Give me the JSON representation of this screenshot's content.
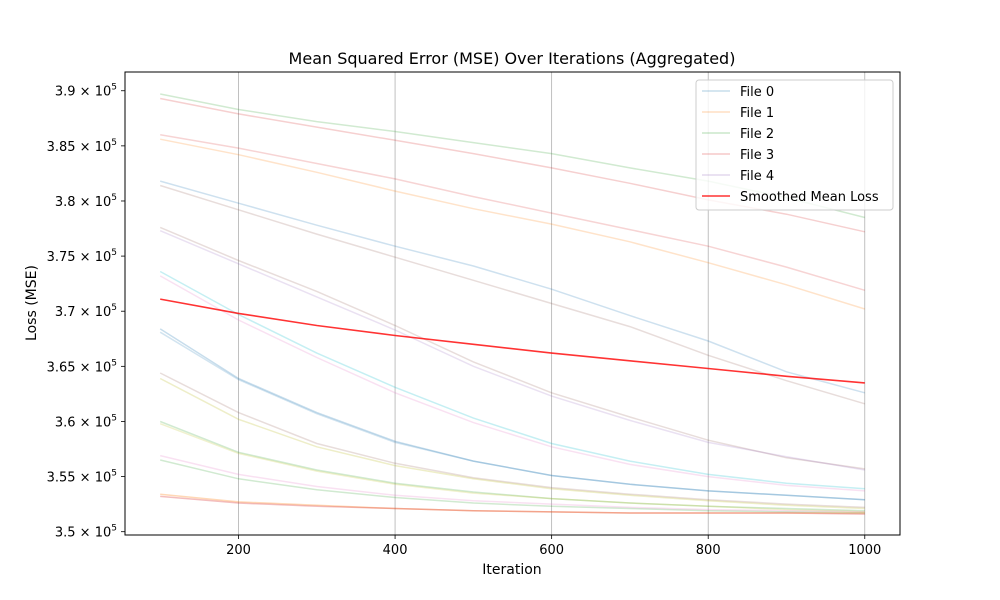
{
  "chart_data": {
    "type": "line",
    "title": "Mean Squared Error (MSE) Over Iterations (Aggregated)",
    "xlabel": "Iteration",
    "ylabel": "Loss (MSE)",
    "x": [
      100,
      200,
      300,
      400,
      500,
      600,
      700,
      800,
      900,
      1000
    ],
    "xlim": [
      55,
      1045
    ],
    "ylim": [
      349700,
      391700
    ],
    "xticks": [
      200,
      400,
      600,
      800,
      1000
    ],
    "yticks": [
      {
        "value": 350000,
        "mantissa": "3.5",
        "exponent": "5"
      },
      {
        "value": 355000,
        "mantissa": "3.55",
        "exponent": "5"
      },
      {
        "value": 360000,
        "mantissa": "3.6",
        "exponent": "5"
      },
      {
        "value": 365000,
        "mantissa": "3.65",
        "exponent": "5"
      },
      {
        "value": 370000,
        "mantissa": "3.7",
        "exponent": "5"
      },
      {
        "value": 375000,
        "mantissa": "3.75",
        "exponent": "5"
      },
      {
        "value": 380000,
        "mantissa": "3.8",
        "exponent": "5"
      },
      {
        "value": 385000,
        "mantissa": "3.85",
        "exponent": "5"
      },
      {
        "value": 390000,
        "mantissa": "3.9",
        "exponent": "5"
      }
    ],
    "tick_base": "10",
    "grid": "vertical",
    "legend_position": "top-right",
    "legend": [
      {
        "name": "File 0",
        "color": "#1f77b4",
        "opacity": 0.25
      },
      {
        "name": "File 1",
        "color": "#ff7f0e",
        "opacity": 0.25
      },
      {
        "name": "File 2",
        "color": "#2ca02c",
        "opacity": 0.25
      },
      {
        "name": "File 3",
        "color": "#d62728",
        "opacity": 0.25
      },
      {
        "name": "File 4",
        "color": "#9467bd",
        "opacity": 0.25
      },
      {
        "name": "Smoothed Mean Loss",
        "color": "#ff0000",
        "opacity": 0.8
      }
    ],
    "series": [
      {
        "color": "#2ca02c",
        "opacity": 0.22,
        "values": [
          389700,
          388300,
          387200,
          386300,
          385300,
          384300,
          383000,
          381800,
          380300,
          378500
        ]
      },
      {
        "color": "#d62728",
        "opacity": 0.22,
        "values": [
          389300,
          387900,
          386700,
          385500,
          384300,
          383000,
          381600,
          380100,
          378800,
          377200
        ]
      },
      {
        "color": "#d62728",
        "opacity": 0.2,
        "values": [
          386000,
          384800,
          383400,
          382000,
          380400,
          378900,
          377400,
          375900,
          374000,
          371900
        ]
      },
      {
        "color": "#ff7f0e",
        "opacity": 0.22,
        "values": [
          385600,
          384200,
          382600,
          380900,
          379300,
          377900,
          376300,
          374400,
          372400,
          370200
        ]
      },
      {
        "color": "#1f77b4",
        "opacity": 0.22,
        "values": [
          381800,
          379800,
          377800,
          375900,
          374100,
          372000,
          369600,
          367300,
          364500,
          362600
        ]
      },
      {
        "color": "#8c564b",
        "opacity": 0.2,
        "values": [
          381400,
          379200,
          377000,
          374900,
          372800,
          370700,
          368600,
          366000,
          363700,
          361600
        ]
      },
      {
        "color": "#8c564b",
        "opacity": 0.2,
        "values": [
          377600,
          374600,
          371800,
          368700,
          365400,
          362600,
          360400,
          358300,
          356700,
          355700
        ]
      },
      {
        "color": "#9467bd",
        "opacity": 0.2,
        "values": [
          377300,
          374300,
          371300,
          368300,
          365000,
          362300,
          360100,
          358100,
          356800,
          355600
        ]
      },
      {
        "color": "#17becf",
        "opacity": 0.25,
        "values": [
          373600,
          369700,
          366200,
          363100,
          360300,
          358000,
          356400,
          355200,
          354400,
          353900
        ]
      },
      {
        "color": "#e377c2",
        "opacity": 0.22,
        "values": [
          373200,
          369200,
          365800,
          362600,
          359900,
          357700,
          356100,
          355000,
          354200,
          353700
        ]
      },
      {
        "color": "#1f77b4",
        "opacity": 0.25,
        "values": [
          368400,
          363900,
          360800,
          358200,
          356400,
          355100,
          354300,
          353700,
          353300,
          352900
        ]
      },
      {
        "color": "#1f77b4",
        "opacity": 0.2,
        "values": [
          368100,
          363800,
          360700,
          358100,
          356400,
          355100,
          354300,
          353700,
          353300,
          352900
        ]
      },
      {
        "color": "#8c564b",
        "opacity": 0.2,
        "values": [
          364400,
          360800,
          358000,
          356200,
          354900,
          354000,
          353400,
          352900,
          352500,
          352200
        ]
      },
      {
        "color": "#bcbd22",
        "opacity": 0.25,
        "values": [
          363900,
          360200,
          357700,
          356000,
          354800,
          353900,
          353300,
          352800,
          352400,
          352100
        ]
      },
      {
        "color": "#2ca02c",
        "opacity": 0.22,
        "values": [
          360000,
          357200,
          355600,
          354400,
          353600,
          353000,
          352600,
          352300,
          352100,
          351900
        ]
      },
      {
        "color": "#bcbd22",
        "opacity": 0.22,
        "values": [
          359800,
          357100,
          355500,
          354300,
          353500,
          353000,
          352600,
          352300,
          352000,
          351800
        ]
      },
      {
        "color": "#e377c2",
        "opacity": 0.22,
        "values": [
          356900,
          355200,
          354100,
          353300,
          352800,
          352500,
          352200,
          352000,
          351900,
          351800
        ]
      },
      {
        "color": "#2ca02c",
        "opacity": 0.22,
        "values": [
          356500,
          354800,
          353800,
          353100,
          352600,
          352300,
          352100,
          351900,
          351800,
          351700
        ]
      },
      {
        "color": "#ff7f0e",
        "opacity": 0.3,
        "values": [
          353400,
          352700,
          352400,
          352100,
          351900,
          351800,
          351700,
          351700,
          351700,
          351700
        ]
      },
      {
        "color": "#d62728",
        "opacity": 0.3,
        "values": [
          353200,
          352600,
          352300,
          352100,
          351900,
          351800,
          351700,
          351700,
          351700,
          351600
        ]
      },
      {
        "name": "Smoothed Mean Loss",
        "color": "#ff0000",
        "opacity": 0.8,
        "width": 1.6,
        "values": [
          371100,
          369800,
          368700,
          367800,
          367000,
          366200,
          365500,
          364800,
          364100,
          363500
        ]
      }
    ]
  }
}
